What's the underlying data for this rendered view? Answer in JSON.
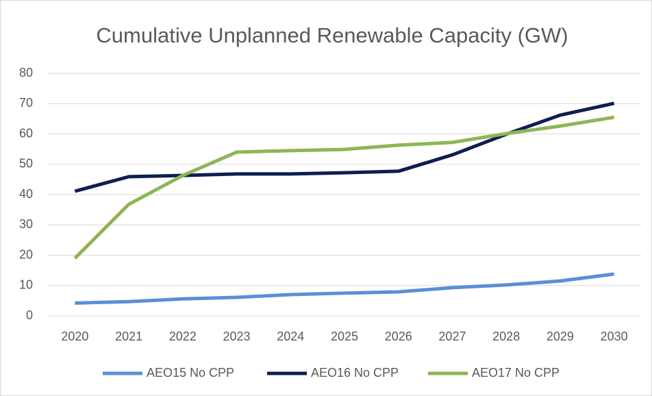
{
  "chart_data": {
    "type": "line",
    "title": "Cumulative Unplanned Renewable Capacity (GW)",
    "categories": [
      "2020",
      "2021",
      "2022",
      "2023",
      "2024",
      "2025",
      "2026",
      "2027",
      "2028",
      "2029",
      "2030"
    ],
    "series": [
      {
        "name": "AEO15 No CPP",
        "color": "#5b8fd6",
        "values": [
          4.2,
          4.7,
          5.6,
          6.1,
          7.0,
          7.5,
          7.9,
          9.3,
          10.2,
          11.5,
          13.8
        ]
      },
      {
        "name": "AEO16 No CPP",
        "color": "#0c1f4f",
        "values": [
          41.1,
          45.9,
          46.3,
          46.8,
          46.8,
          47.2,
          47.7,
          53.1,
          59.9,
          66.2,
          70.1
        ]
      },
      {
        "name": "AEO17 No CPP",
        "color": "#8db656",
        "values": [
          19.0,
          36.8,
          46.3,
          54.0,
          54.5,
          54.9,
          56.3,
          57.2,
          60.1,
          62.6,
          65.5
        ]
      }
    ],
    "ylim": [
      0,
      80
    ],
    "yticks": [
      0,
      10,
      20,
      30,
      40,
      50,
      60,
      70,
      80
    ],
    "grid": true,
    "legend": "bottom"
  }
}
